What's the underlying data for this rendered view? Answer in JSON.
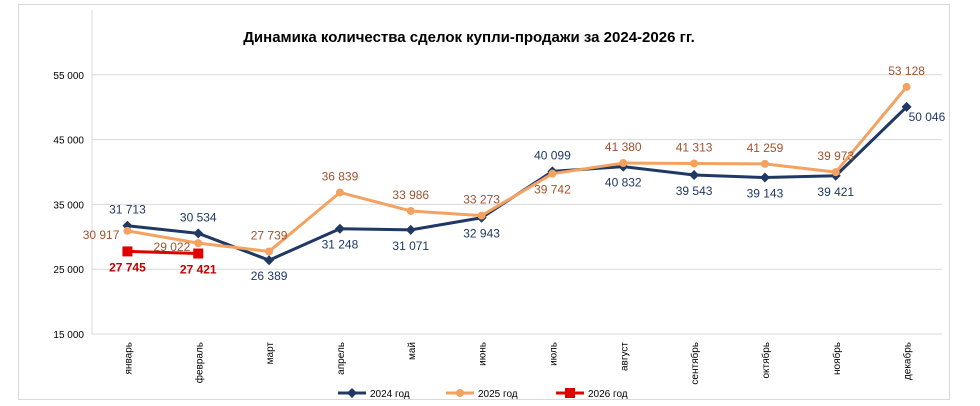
{
  "chart_data": {
    "type": "line",
    "title": "Динамика количества сделок купли-продажи за 2024-2026 гг.",
    "categories": [
      "январь",
      "февраль",
      "март",
      "апрель",
      "май",
      "июнь",
      "июль",
      "август",
      "сентябрь",
      "октябрь",
      "ноябрь",
      "декабрь"
    ],
    "ylim": [
      15000,
      65000
    ],
    "yticks": [
      15000,
      25000,
      35000,
      45000,
      55000
    ],
    "ytick_labels": [
      "15 000",
      "25 000",
      "35 000",
      "45 000",
      "55 000"
    ],
    "grid": true,
    "legend_position": "bottom",
    "series": [
      {
        "name": "2024 год",
        "color": "#1F3864",
        "marker": "diamond",
        "values": [
          31713,
          30534,
          26389,
          31248,
          31071,
          32943,
          40099,
          40832,
          39543,
          39143,
          39421,
          50046
        ],
        "labels": [
          "31 713",
          "30 534",
          "26 389",
          "31 248",
          "31 071",
          "32 943",
          "40 099",
          "40 832",
          "39 543",
          "39 143",
          "39 421",
          "50 046"
        ],
        "label_position": [
          "above",
          "above",
          "below",
          "below",
          "below",
          "below",
          "above",
          "below",
          "below",
          "below",
          "below",
          "right"
        ],
        "label_color": "#1F3864"
      },
      {
        "name": "2025 год",
        "color": "#F4A261",
        "marker": "circle",
        "values": [
          30917,
          29022,
          27739,
          36839,
          33986,
          33273,
          39742,
          41380,
          41313,
          41259,
          39973,
          53128
        ],
        "labels": [
          "30 917",
          "29 022",
          "27 739",
          "36 839",
          "33 986",
          "33 273",
          "39 742",
          "41 380",
          "41 313",
          "41 259",
          "39 973",
          "53 128"
        ],
        "label_position": [
          "left",
          "left",
          "above",
          "above",
          "above",
          "above",
          "below",
          "above",
          "above",
          "above",
          "above",
          "above"
        ],
        "label_color": "#A0522D"
      },
      {
        "name": "2026 год",
        "color": "#E00000",
        "marker": "square",
        "values": [
          27745,
          27421,
          null,
          null,
          null,
          null,
          null,
          null,
          null,
          null,
          null,
          null
        ],
        "labels": [
          "27 745",
          "27 421"
        ],
        "label_position": [
          "below",
          "below"
        ],
        "label_color": "#C00000",
        "label_bold": true
      }
    ]
  }
}
